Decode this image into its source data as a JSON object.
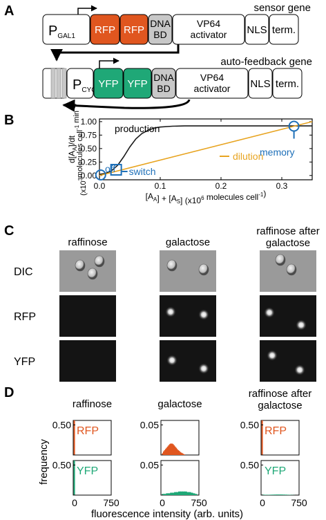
{
  "panel_a": {
    "label": "A",
    "sensor_title": "sensor gene",
    "feedback_title": "auto-feedback gene",
    "sensor_parts": [
      {
        "text": "P",
        "sub": "GAL1",
        "color": "#ffffff"
      },
      {
        "text": "RFP",
        "sub": "",
        "color": "#e0561f"
      },
      {
        "text": "RFP",
        "sub": "",
        "color": "#e0561f"
      },
      {
        "text": "DNA\nBD",
        "sub": "",
        "color": "#c8c8c8"
      },
      {
        "text": "VP64\nactivator",
        "sub": "",
        "color": "#ffffff"
      },
      {
        "text": "NLS",
        "sub": "",
        "color": "#ffffff"
      },
      {
        "text": "term.",
        "sub": "",
        "color": "#ffffff"
      }
    ],
    "feedback_parts": [
      {
        "text": "P",
        "sub": "CYC1",
        "color": "#ffffff"
      },
      {
        "text": "YFP",
        "sub": "",
        "color": "#1fa877"
      },
      {
        "text": "YFP",
        "sub": "",
        "color": "#1fa877"
      },
      {
        "text": "DNA\nBD",
        "sub": "",
        "color": "#c8c8c8"
      },
      {
        "text": "VP64\nactivator",
        "sub": "",
        "color": "#ffffff"
      },
      {
        "text": "NLS",
        "sub": "",
        "color": "#ffffff"
      },
      {
        "text": "term.",
        "sub": "",
        "color": "#ffffff"
      }
    ]
  },
  "panel_b": {
    "label": "B",
    "chart_data": {
      "type": "line",
      "series": [
        {
          "name": "production",
          "x": [
            0,
            0.01,
            0.02,
            0.03,
            0.04,
            0.05,
            0.06,
            0.07,
            0.08,
            0.09,
            0.1,
            0.12,
            0.14,
            0.16,
            0.2,
            0.25,
            0.3,
            0.35
          ],
          "y": [
            0.02,
            0.04,
            0.09,
            0.19,
            0.35,
            0.53,
            0.68,
            0.78,
            0.84,
            0.88,
            0.9,
            0.915,
            0.92,
            0.92,
            0.92,
            0.92,
            0.92,
            0.92
          ],
          "color": "#1a1a1a"
        },
        {
          "name": "dilution",
          "x": [
            0,
            0.35
          ],
          "y": [
            0,
            1.0
          ],
          "color": "#e8a420"
        }
      ],
      "xlabel": "[A_A] + [A_S] (x10^6 molecules cell^-1)",
      "ylabel_lines": [
        "d[A_A]/dt",
        "(x10^3 molecules cell^-1 min^-1)"
      ],
      "xlim": [
        0,
        0.35
      ],
      "ylim": [
        -0.08,
        1.05
      ],
      "xticks": [
        "0.0",
        "0.1",
        "0.2",
        "0.3"
      ],
      "yticks": [
        "0.00",
        "0.25",
        "0.50",
        "0.75",
        "1.00"
      ],
      "annotations": [
        "production",
        "dilution",
        "memory",
        "off",
        "switch"
      ],
      "annotation_color": "#1d6fb8"
    }
  },
  "panel_c": {
    "label": "C",
    "columns": [
      "raffinose",
      "galactose",
      "raffinose after\ngalactose"
    ],
    "rows": [
      "DIC",
      "RFP",
      "YFP"
    ]
  },
  "panel_d": {
    "label": "D",
    "columns": [
      "raffinose",
      "galactose",
      "raffinose after\ngalactose"
    ],
    "ylabel": "frequency",
    "xlabel": "fluorescence intensity (arb. units)",
    "chart_data": {
      "type": "bar",
      "xlim": [
        0,
        750
      ],
      "xticks": [
        "0",
        "750"
      ],
      "rows": [
        {
          "channel": "RFP",
          "color": "#e0561f"
        },
        {
          "channel": "YFP",
          "color": "#1fa877"
        }
      ],
      "ymax": [
        [
          0.5,
          0.05,
          0.5
        ],
        [
          0.5,
          0.05,
          0.5
        ]
      ],
      "yticks": [
        [
          "0.50",
          "0.05",
          "0.50"
        ],
        [
          "0.50",
          "0.05",
          "0.50"
        ]
      ],
      "series": [
        {
          "row": "RFP",
          "condition": "raffinose",
          "bins": [
            [
              8,
              0.6
            ]
          ]
        },
        {
          "row": "RFP",
          "condition": "galactose",
          "bins": [
            [
              20,
              0.003
            ],
            [
              40,
              0.006
            ],
            [
              60,
              0.008
            ],
            [
              80,
              0.01
            ],
            [
              100,
              0.012
            ],
            [
              120,
              0.014
            ],
            [
              140,
              0.016
            ],
            [
              160,
              0.018
            ],
            [
              180,
              0.019
            ],
            [
              200,
              0.018
            ],
            [
              220,
              0.016
            ],
            [
              240,
              0.014
            ],
            [
              260,
              0.012
            ],
            [
              280,
              0.01
            ],
            [
              300,
              0.008
            ],
            [
              320,
              0.007
            ],
            [
              340,
              0.005
            ],
            [
              360,
              0.004
            ],
            [
              380,
              0.003
            ],
            [
              400,
              0.002
            ],
            [
              420,
              0.001
            ]
          ]
        },
        {
          "row": "RFP",
          "condition": "raffinose after galactose",
          "bins": [
            [
              8,
              0.6
            ]
          ]
        },
        {
          "row": "YFP",
          "condition": "raffinose",
          "bins": [
            [
              8,
              0.6
            ]
          ]
        },
        {
          "row": "YFP",
          "condition": "galactose",
          "bins": [
            [
              20,
              0.002
            ],
            [
              60,
              0.002
            ],
            [
              100,
              0.003
            ],
            [
              140,
              0.003
            ],
            [
              180,
              0.004
            ],
            [
              220,
              0.004
            ],
            [
              260,
              0.005
            ],
            [
              300,
              0.005
            ],
            [
              340,
              0.006
            ],
            [
              380,
              0.006
            ],
            [
              420,
              0.006
            ],
            [
              460,
              0.006
            ],
            [
              500,
              0.005
            ],
            [
              540,
              0.005
            ],
            [
              580,
              0.004
            ],
            [
              620,
              0.003
            ],
            [
              660,
              0.002
            ]
          ]
        },
        {
          "row": "YFP",
          "condition": "raffinose after galactose",
          "bins": [
            [
              10,
              0.008
            ],
            [
              50,
              0.006
            ],
            [
              90,
              0.005
            ],
            [
              130,
              0.006
            ],
            [
              170,
              0.007
            ],
            [
              210,
              0.008
            ],
            [
              250,
              0.009
            ],
            [
              290,
              0.01
            ],
            [
              330,
              0.01
            ],
            [
              370,
              0.01
            ],
            [
              410,
              0.009
            ],
            [
              450,
              0.008
            ],
            [
              490,
              0.007
            ],
            [
              530,
              0.005
            ],
            [
              570,
              0.003
            ],
            [
              610,
              0.002
            ]
          ]
        }
      ]
    }
  }
}
